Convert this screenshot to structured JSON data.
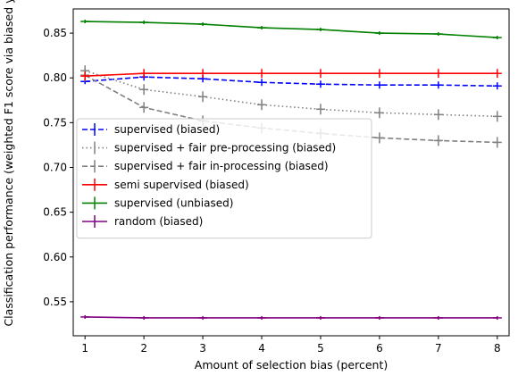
{
  "chart_data": {
    "type": "line",
    "title": "",
    "xlabel": "Amount of selection bias (percent)",
    "ylabel": "Classification performance (weighted F1 score via biased y",
    "x": [
      1,
      2,
      3,
      4,
      5,
      6,
      7,
      8
    ],
    "xlim": [
      0.8,
      8.2
    ],
    "ylim": [
      0.512,
      0.877
    ],
    "xticks": [
      "1",
      "2",
      "3",
      "4",
      "5",
      "6",
      "7",
      "8"
    ],
    "yticks": [
      "0.55",
      "0.60",
      "0.65",
      "0.70",
      "0.75",
      "0.80",
      "0.85"
    ],
    "grid": false,
    "legend_position": "center-left",
    "series": [
      {
        "name": "supervised (biased)",
        "color": "#0000ff",
        "linestyle": "dashed",
        "values": [
          0.796,
          0.801,
          0.799,
          0.795,
          0.793,
          0.792,
          0.792,
          0.791
        ],
        "errors": [
          0.003,
          0.004,
          0.004,
          0.004,
          0.004,
          0.004,
          0.004,
          0.004
        ]
      },
      {
        "name": "supervised + fair pre-processing (biased)",
        "color": "#808080",
        "linestyle": "dotted",
        "values": [
          0.808,
          0.787,
          0.779,
          0.77,
          0.765,
          0.761,
          0.759,
          0.757
        ],
        "errors": [
          0.006,
          0.006,
          0.006,
          0.006,
          0.006,
          0.006,
          0.006,
          0.006
        ]
      },
      {
        "name": "supervised + fair in-processing (biased)",
        "color": "#808080",
        "linestyle": "dashed",
        "values": [
          0.803,
          0.767,
          0.752,
          0.744,
          0.738,
          0.733,
          0.73,
          0.728
        ],
        "errors": [
          0.007,
          0.006,
          0.006,
          0.006,
          0.006,
          0.006,
          0.006,
          0.006
        ]
      },
      {
        "name": "semi supervised (biased)",
        "color": "#ff0000",
        "linestyle": "solid",
        "values": [
          0.802,
          0.805,
          0.805,
          0.805,
          0.805,
          0.805,
          0.805,
          0.805
        ],
        "errors": [
          0.005,
          0.005,
          0.005,
          0.005,
          0.005,
          0.005,
          0.005,
          0.005
        ]
      },
      {
        "name": "supervised (unbiased)",
        "color": "#008000",
        "linestyle": "solid",
        "values": [
          0.863,
          0.862,
          0.86,
          0.856,
          0.854,
          0.85,
          0.849,
          0.845
        ],
        "errors": [
          0.002,
          0.002,
          0.002,
          0.002,
          0.002,
          0.002,
          0.002,
          0.002
        ]
      },
      {
        "name": "random (biased)",
        "color": "#800080",
        "linestyle": "solid",
        "values": [
          0.533,
          0.532,
          0.532,
          0.532,
          0.532,
          0.532,
          0.532,
          0.532
        ],
        "errors": [
          0.002,
          0.002,
          0.002,
          0.002,
          0.002,
          0.002,
          0.002,
          0.002
        ]
      }
    ]
  }
}
